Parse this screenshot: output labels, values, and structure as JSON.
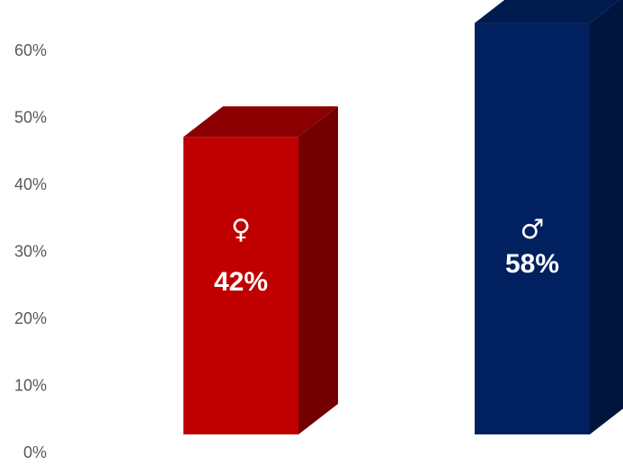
{
  "chart_data": {
    "type": "bar",
    "categories": [
      "Female",
      "Male"
    ],
    "values": [
      42,
      58
    ],
    "display_values": [
      44.4,
      61.4
    ],
    "data_labels": [
      "42%",
      "58%"
    ],
    "symbols": [
      "♀",
      "♂"
    ],
    "colors": {
      "female_front": "#c00000",
      "female_top": "#8b0000",
      "female_side": "#720000",
      "male_front": "#002060",
      "male_top": "#001b4d",
      "male_side": "#00153d"
    },
    "yaxis": {
      "ticks": [
        0,
        10,
        20,
        30,
        40,
        50,
        60
      ],
      "tick_labels": [
        "0%",
        "10%",
        "20%",
        "30%",
        "40%",
        "50%",
        "60%"
      ],
      "ylim": [
        0,
        60
      ]
    },
    "grid": false,
    "legend": "none",
    "title": "",
    "xlabel": "",
    "ylabel": ""
  }
}
